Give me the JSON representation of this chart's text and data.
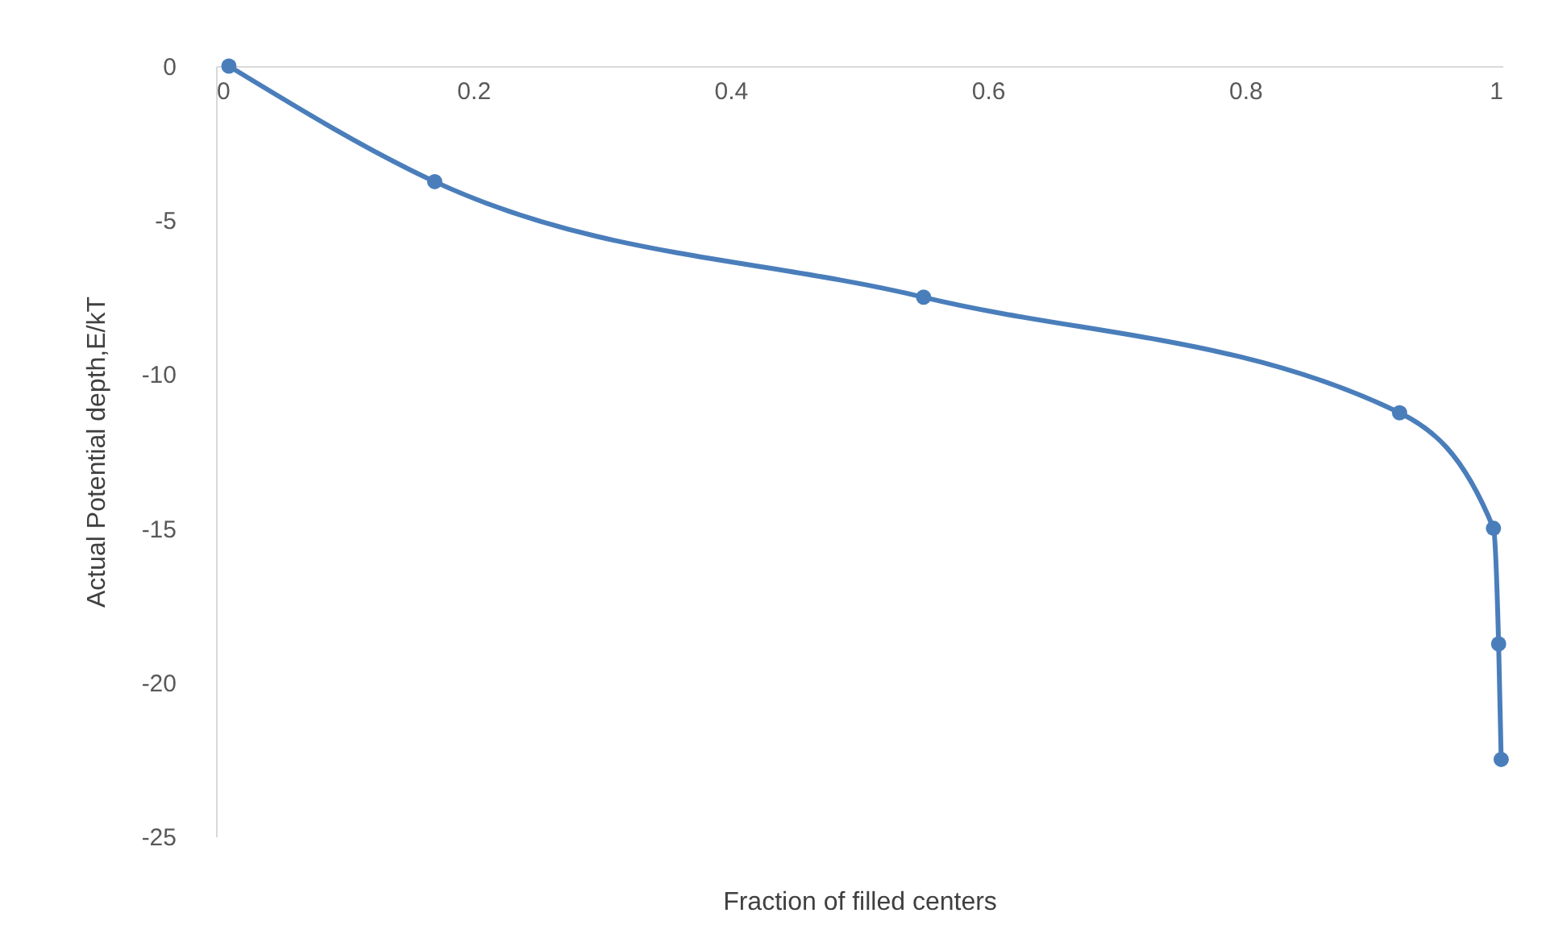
{
  "chart_data": {
    "type": "line",
    "xlabel": "Fraction of filled centers",
    "ylabel": "Actual Potential depth,E/kT",
    "x": [
      0.01,
      0.17,
      0.55,
      0.92,
      0.993,
      0.997,
      0.999
    ],
    "series": [
      {
        "color": "#4a7ebb",
        "values": [
          0,
          -3.75,
          -7.5,
          -11.25,
          -15,
          -18.75,
          -22.5
        ]
      }
    ],
    "xlim": [
      0,
      1
    ],
    "xticks": [
      0,
      0.2,
      0.4,
      0.6,
      0.8,
      1
    ],
    "ylim": [
      -25,
      0
    ],
    "yticks": [
      0,
      -5,
      -10,
      -15,
      -20,
      -25
    ],
    "grid": false,
    "legend": false,
    "marker": "circle",
    "line_style": "solid"
  }
}
